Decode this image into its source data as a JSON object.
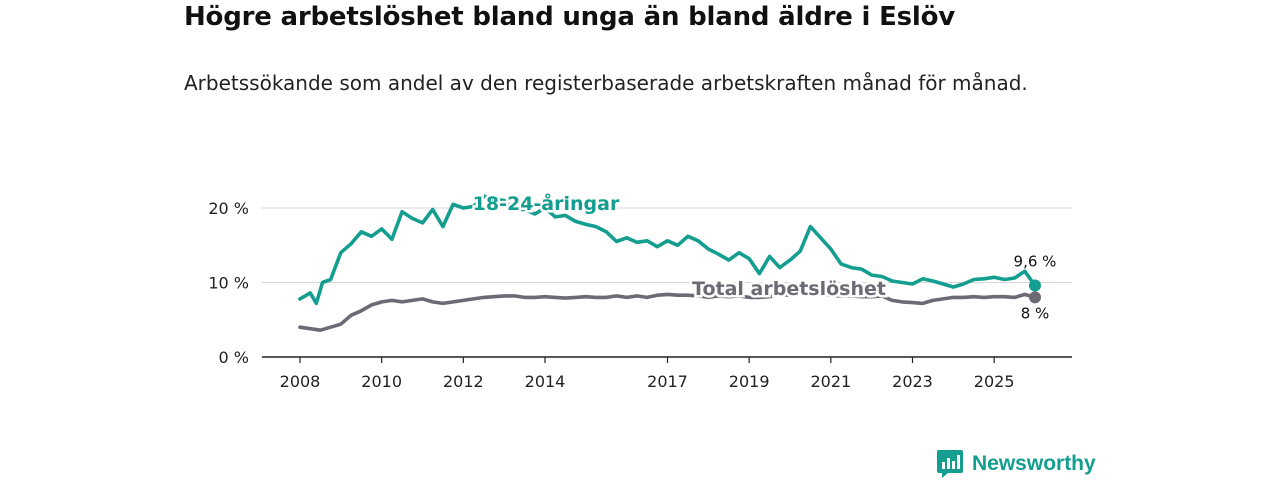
{
  "header": {
    "title": "Högre arbetslöshet bland unga än bland äldre i Eslöv",
    "subtitle": "Arbetssökande som andel av den registerbaserade arbetskraften månad för månad."
  },
  "brand": {
    "name": "Newsworthy",
    "icon": "newsworthy-logo-icon",
    "color": "#139e8f"
  },
  "chart_data": {
    "type": "line",
    "title": "Högre arbetslöshet bland unga än bland äldre i Eslöv",
    "subtitle": "Arbetssökande som andel av den registerbaserade arbetskraften månad för månad.",
    "xlabel": "",
    "ylabel": "",
    "xlim": [
      2008.0,
      2026.0
    ],
    "ylim": [
      0,
      23
    ],
    "xticks": [
      2008,
      2010,
      2012,
      2014,
      2017,
      2019,
      2021,
      2023,
      2025
    ],
    "xtick_labels": [
      "2008",
      "2010",
      "2012",
      "2014",
      "2017",
      "2019",
      "2021",
      "2023",
      "2025"
    ],
    "yticks": [
      0,
      10,
      20
    ],
    "ytick_labels": [
      "0 %",
      "10 %",
      "20 %"
    ],
    "grid": true,
    "series": [
      {
        "name": "18-24-åringar",
        "color": "#139e8f",
        "label": "18-24-åringar",
        "end_label": "9,6 %",
        "x": [
          2008.0,
          2008.25,
          2008.4,
          2008.55,
          2008.75,
          2009.0,
          2009.25,
          2009.5,
          2009.75,
          2010.0,
          2010.25,
          2010.5,
          2010.75,
          2011.0,
          2011.25,
          2011.5,
          2011.75,
          2012.0,
          2012.25,
          2012.5,
          2012.75,
          2013.0,
          2013.25,
          2013.5,
          2013.75,
          2014.0,
          2014.25,
          2014.5,
          2014.75,
          2015.0,
          2015.25,
          2015.5,
          2015.75,
          2016.0,
          2016.25,
          2016.5,
          2016.75,
          2017.0,
          2017.25,
          2017.5,
          2017.75,
          2018.0,
          2018.25,
          2018.5,
          2018.75,
          2019.0,
          2019.25,
          2019.5,
          2019.75,
          2020.0,
          2020.25,
          2020.5,
          2020.75,
          2021.0,
          2021.25,
          2021.5,
          2021.75,
          2022.0,
          2022.25,
          2022.5,
          2022.75,
          2023.0,
          2023.25,
          2023.5,
          2023.75,
          2024.0,
          2024.25,
          2024.5,
          2024.75,
          2025.0,
          2025.25,
          2025.5,
          2025.75,
          2026.0
        ],
        "values": [
          7.8,
          8.6,
          7.2,
          10.0,
          10.4,
          14.0,
          15.2,
          16.8,
          16.2,
          17.2,
          15.8,
          19.5,
          18.6,
          18.0,
          19.8,
          17.5,
          20.5,
          20.0,
          20.2,
          21.6,
          21.2,
          21.0,
          19.8,
          19.8,
          19.2,
          20.0,
          18.8,
          19.0,
          18.2,
          17.8,
          17.5,
          16.8,
          15.5,
          16.0,
          15.4,
          15.6,
          14.8,
          15.6,
          15.0,
          16.2,
          15.6,
          14.5,
          13.8,
          13.0,
          14.0,
          13.2,
          11.2,
          13.5,
          12.0,
          13.0,
          14.2,
          17.5,
          16.0,
          14.5,
          12.5,
          12.0,
          11.8,
          11.0,
          10.8,
          10.2,
          10.0,
          9.8,
          10.5,
          10.2,
          9.8,
          9.4,
          9.8,
          10.4,
          10.5,
          10.7,
          10.4,
          10.6,
          11.5,
          9.6
        ]
      },
      {
        "name": "Total arbetslöshet",
        "color": "#6e6a75",
        "label": "Total arbetslöshet",
        "end_label": "8 %",
        "x": [
          2008.0,
          2008.25,
          2008.5,
          2008.75,
          2009.0,
          2009.25,
          2009.5,
          2009.75,
          2010.0,
          2010.25,
          2010.5,
          2010.75,
          2011.0,
          2011.25,
          2011.5,
          2011.75,
          2012.0,
          2012.25,
          2012.5,
          2012.75,
          2013.0,
          2013.25,
          2013.5,
          2013.75,
          2014.0,
          2014.25,
          2014.5,
          2014.75,
          2015.0,
          2015.25,
          2015.5,
          2015.75,
          2016.0,
          2016.25,
          2016.5,
          2016.75,
          2017.0,
          2017.25,
          2017.5,
          2017.75,
          2018.0,
          2018.25,
          2018.5,
          2018.75,
          2019.0,
          2019.25,
          2019.5,
          2019.75,
          2020.0,
          2020.25,
          2020.5,
          2020.75,
          2021.0,
          2021.25,
          2021.5,
          2021.75,
          2022.0,
          2022.25,
          2022.5,
          2022.75,
          2023.0,
          2023.25,
          2023.5,
          2023.75,
          2024.0,
          2024.25,
          2024.5,
          2024.75,
          2025.0,
          2025.25,
          2025.5,
          2025.75,
          2026.0
        ],
        "values": [
          4.0,
          3.8,
          3.6,
          4.0,
          4.4,
          5.6,
          6.2,
          7.0,
          7.4,
          7.6,
          7.4,
          7.6,
          7.8,
          7.4,
          7.2,
          7.4,
          7.6,
          7.8,
          8.0,
          8.1,
          8.2,
          8.2,
          8.0,
          8.0,
          8.1,
          8.0,
          7.9,
          8.0,
          8.1,
          8.0,
          8.0,
          8.2,
          8.0,
          8.2,
          8.0,
          8.3,
          8.4,
          8.3,
          8.3,
          8.2,
          8.0,
          8.2,
          8.1,
          8.2,
          8.0,
          8.0,
          8.1,
          8.4,
          8.3,
          8.5,
          8.4,
          8.4,
          8.3,
          8.2,
          8.2,
          8.1,
          8.1,
          8.2,
          7.6,
          7.4,
          7.3,
          7.2,
          7.6,
          7.8,
          8.0,
          8.0,
          8.1,
          8.0,
          8.1,
          8.1,
          8.0,
          8.4,
          8.0
        ]
      }
    ]
  }
}
